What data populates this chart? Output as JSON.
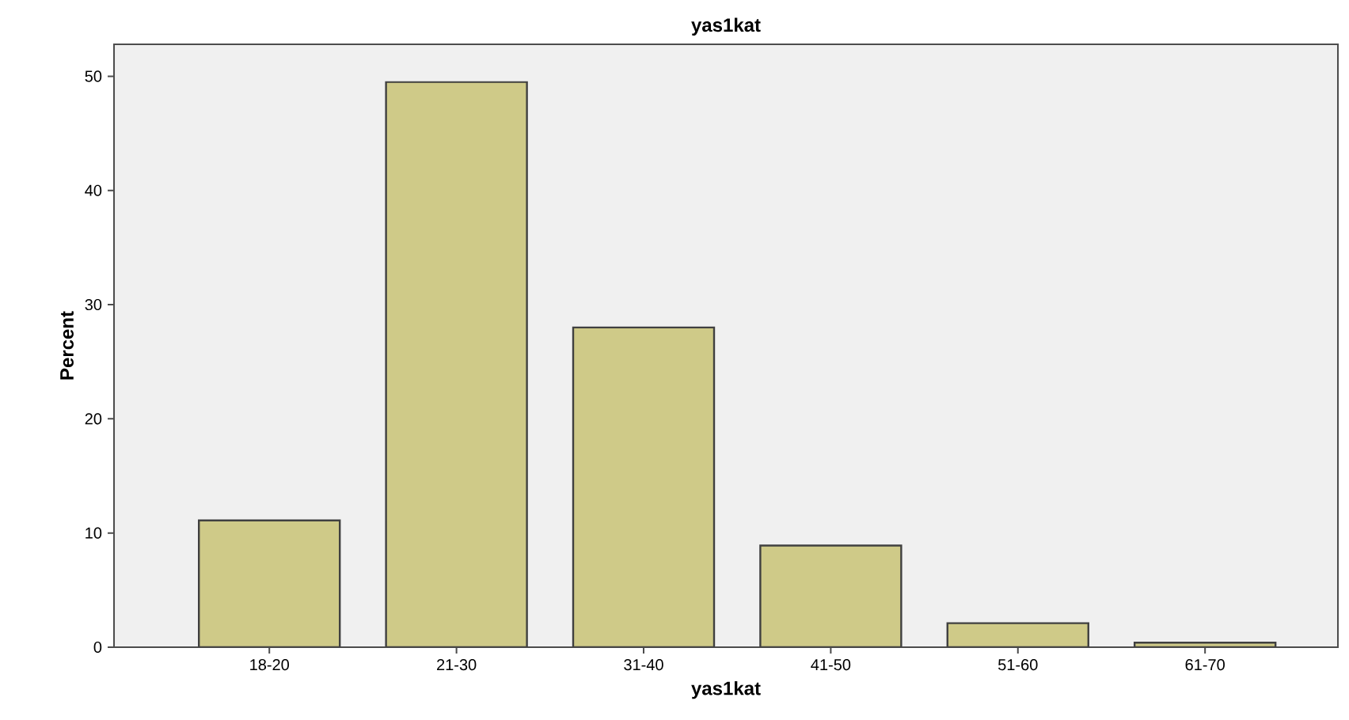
{
  "chart_data": {
    "type": "bar",
    "title": "yas1kat",
    "xlabel": "yas1kat",
    "ylabel": "Percent",
    "categories": [
      "18-20",
      "21-30",
      "31-40",
      "41-50",
      "51-60",
      "61-70"
    ],
    "values": [
      11.1,
      49.5,
      28.0,
      8.9,
      2.1,
      0.4
    ],
    "color": "#cfca88",
    "ylim": [
      0,
      52.8
    ],
    "yticks": [
      0,
      10,
      20,
      30,
      40,
      50
    ],
    "grid": false
  }
}
